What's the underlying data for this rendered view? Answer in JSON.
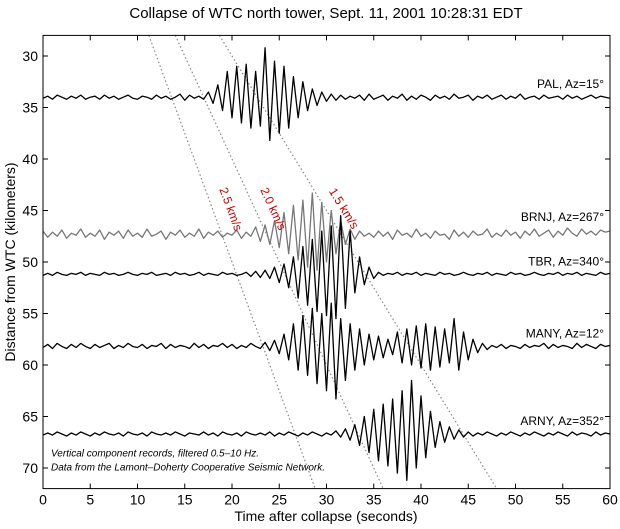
{
  "chart_data": {
    "type": "seismogram",
    "title": "Collapse of WTC north tower, Sept. 11, 2001 10:28:31 EDT",
    "x_label": "Time after collapse (seconds)",
    "y_label": "Distance from WTC (kilometers)",
    "xlim": [
      0,
      60
    ],
    "ylim": [
      28,
      72
    ],
    "y_reversed": true,
    "grid": false,
    "xticks": [
      0,
      5,
      10,
      15,
      20,
      25,
      30,
      35,
      40,
      45,
      50,
      55,
      60
    ],
    "yticks": [
      30,
      35,
      40,
      45,
      50,
      55,
      60,
      65,
      70
    ],
    "x": [
      0,
      0.5,
      1,
      1.5,
      2,
      2.5,
      3,
      3.5,
      4,
      4.5,
      5,
      5.5,
      6,
      6.5,
      7,
      7.5,
      8,
      8.5,
      9,
      9.5,
      10,
      10.5,
      11,
      11.5,
      12,
      12.5,
      13,
      13.5,
      14,
      14.5,
      15,
      15.5,
      16,
      16.5,
      17,
      17.5,
      18,
      18.5,
      19,
      19.5,
      20,
      20.5,
      21,
      21.5,
      22,
      22.5,
      23,
      23.5,
      24,
      24.5,
      25,
      25.5,
      26,
      26.5,
      27,
      27.5,
      28,
      28.5,
      29,
      29.5,
      30,
      30.5,
      31,
      31.5,
      32,
      32.5,
      33,
      33.5,
      34,
      34.5,
      35,
      35.5,
      36,
      36.5,
      37,
      37.5,
      38,
      38.5,
      39,
      39.5,
      40,
      40.5,
      41,
      41.5,
      42,
      42.5,
      43,
      43.5,
      44,
      44.5,
      45,
      45.5,
      46,
      46.5,
      47,
      47.5,
      48,
      48.5,
      49,
      49.5,
      50,
      50.5,
      51,
      51.5,
      52,
      52.5,
      53,
      53.5,
      54,
      54.5,
      55,
      55.5,
      56,
      56.5,
      57,
      57.5,
      58,
      58.5,
      59,
      59.5,
      60
    ],
    "series": [
      {
        "name": "PAL, Az=15°",
        "color": "#000000",
        "values": [
          34.1,
          33.9,
          34.2,
          33.8,
          34.0,
          34.2,
          33.9,
          34.1,
          33.8,
          34.2,
          34.0,
          33.9,
          34.2,
          33.8,
          34.1,
          33.9,
          34.2,
          34.0,
          33.8,
          34.1,
          34.2,
          33.9,
          34.0,
          34.2,
          33.8,
          34.1,
          33.9,
          34.2,
          34.0,
          33.7,
          34.3,
          33.8,
          34.1,
          33.9,
          34.2,
          33.5,
          34.6,
          32.8,
          35.3,
          31.5,
          36.0,
          31.0,
          36.5,
          30.8,
          37.0,
          31.5,
          36.8,
          29.2,
          38.2,
          30.5,
          37.5,
          31.0,
          37.0,
          32.0,
          36.0,
          32.5,
          35.3,
          33.2,
          34.8,
          33.5,
          34.4,
          33.7,
          34.3,
          33.8,
          34.2,
          33.9,
          34.1,
          33.8,
          34.3,
          33.7,
          34.2,
          34.0,
          33.8,
          34.3,
          33.9,
          34.1,
          33.7,
          34.3,
          33.9,
          34.2,
          33.8,
          34.0,
          34.3,
          33.8,
          34.1,
          33.9,
          34.2,
          33.7,
          34.1,
          34.0,
          33.8,
          34.3,
          33.9,
          34.1,
          33.8,
          34.2,
          34.0,
          33.8,
          34.2,
          33.9,
          34.1,
          33.7,
          34.2,
          34.0,
          33.9,
          34.2,
          33.8,
          34.1,
          34.0,
          33.9,
          34.2,
          33.8,
          34.1,
          33.9,
          34.2,
          34.0,
          33.8,
          34.1,
          33.9,
          34.0,
          34.1
        ]
      },
      {
        "name": "BRNJ, Az=267°",
        "color": "#777777",
        "values": [
          47.0,
          47.6,
          47.1,
          47.5,
          46.9,
          47.7,
          47.2,
          47.4,
          46.8,
          47.6,
          47.2,
          47.5,
          46.9,
          47.8,
          47.1,
          47.4,
          47.0,
          47.7,
          46.9,
          47.5,
          47.2,
          47.6,
          46.8,
          47.5,
          47.3,
          47.0,
          47.8,
          47.1,
          47.4,
          46.9,
          47.6,
          47.2,
          47.5,
          46.8,
          47.7,
          47.1,
          47.4,
          47.0,
          47.6,
          47.2,
          47.4,
          46.9,
          47.7,
          47.1,
          47.5,
          46.6,
          48.0,
          46.4,
          48.3,
          46.0,
          48.6,
          45.2,
          49.2,
          44.5,
          49.8,
          44.0,
          50.5,
          43.3,
          50.8,
          44.2,
          50.0,
          45.0,
          49.2,
          46.0,
          48.3,
          46.8,
          47.8,
          47.0,
          47.5,
          47.2,
          47.6,
          47.0,
          47.5,
          47.1,
          47.8,
          46.9,
          47.4,
          47.2,
          47.6,
          46.8,
          47.5,
          47.2,
          47.7,
          47.0,
          47.4,
          47.3,
          47.8,
          46.9,
          47.5,
          47.1,
          47.6,
          47.0,
          47.4,
          47.3,
          46.8,
          47.6,
          47.2,
          47.5,
          46.9,
          47.4,
          47.1,
          47.7,
          47.0,
          47.4,
          46.8,
          47.5,
          47.2,
          46.9,
          47.6,
          47.0,
          47.4,
          46.7,
          47.2,
          47.5,
          46.8,
          47.3,
          47.0,
          47.4,
          46.9,
          47.1,
          47.0
        ]
      },
      {
        "name": "TBR, Az=340°",
        "color": "#000000",
        "values": [
          51.3,
          51.1,
          51.3,
          51.0,
          51.2,
          51.3,
          51.1,
          51.2,
          51.0,
          51.3,
          51.1,
          51.2,
          51.3,
          51.0,
          51.2,
          51.1,
          51.3,
          51.2,
          51.0,
          51.2,
          51.3,
          51.1,
          51.2,
          51.0,
          51.3,
          51.2,
          51.1,
          51.3,
          51.0,
          51.2,
          51.1,
          51.3,
          51.2,
          51.0,
          51.3,
          51.1,
          51.2,
          51.3,
          51.0,
          51.2,
          51.1,
          51.3,
          51.2,
          51.0,
          51.4,
          50.9,
          51.5,
          50.8,
          51.6,
          50.5,
          52.0,
          50.2,
          52.5,
          49.5,
          53.5,
          48.5,
          54.2,
          47.8,
          54.8,
          47.0,
          55.2,
          46.5,
          55.5,
          45.5,
          54.5,
          47.0,
          53.0,
          49.5,
          52.2,
          50.5,
          51.6,
          51.0,
          51.3,
          51.1,
          51.2,
          51.0,
          51.3,
          51.1,
          51.2,
          51.0,
          51.3,
          51.1,
          51.2,
          51.3,
          51.0,
          51.2,
          51.1,
          51.3,
          51.2,
          51.0,
          51.2,
          51.3,
          51.1,
          51.2,
          51.0,
          51.3,
          51.1,
          51.2,
          51.3,
          51.0,
          51.2,
          51.1,
          51.3,
          51.2,
          51.0,
          51.2,
          51.3,
          51.1,
          51.2,
          51.0,
          51.3,
          51.1,
          51.2,
          51.0,
          51.3,
          51.1,
          51.2,
          51.3,
          51.0,
          51.2,
          51.1
        ]
      },
      {
        "name": "MANY, Az=12°",
        "color": "#000000",
        "values": [
          58.3,
          58.0,
          58.4,
          57.9,
          58.2,
          58.4,
          58.0,
          58.3,
          57.9,
          58.2,
          58.4,
          58.0,
          58.3,
          58.1,
          57.9,
          58.4,
          58.1,
          58.3,
          57.9,
          58.2,
          58.3,
          58.0,
          58.4,
          58.1,
          58.2,
          57.9,
          58.4,
          58.0,
          58.3,
          58.1,
          58.2,
          58.4,
          57.9,
          58.3,
          58.0,
          58.4,
          58.1,
          58.2,
          57.9,
          58.3,
          58.0,
          58.4,
          58.1,
          58.3,
          57.9,
          58.2,
          58.4,
          57.8,
          58.6,
          57.6,
          58.9,
          57.0,
          59.5,
          56.0,
          60.5,
          55.2,
          61.0,
          54.5,
          61.8,
          55.0,
          62.5,
          54.0,
          63.3,
          55.5,
          61.5,
          56.0,
          60.5,
          56.5,
          60.0,
          57.0,
          59.5,
          57.2,
          59.3,
          57.5,
          59.0,
          56.8,
          59.8,
          56.5,
          60.0,
          56.2,
          60.3,
          56.0,
          60.5,
          56.3,
          60.2,
          56.5,
          59.8,
          55.5,
          60.5,
          56.8,
          59.5,
          57.5,
          58.8,
          57.9,
          58.5,
          58.1,
          58.3,
          58.0,
          58.4,
          58.1,
          58.2,
          58.4,
          58.0,
          58.3,
          58.1,
          58.2,
          57.9,
          58.4,
          58.0,
          58.3,
          58.1,
          58.2,
          58.4,
          57.9,
          58.3,
          58.0,
          58.2,
          58.4,
          58.0,
          58.2,
          58.1
        ]
      },
      {
        "name": "ARNY, Az=352°",
        "color": "#000000",
        "values": [
          66.8,
          66.6,
          66.8,
          66.5,
          66.7,
          66.9,
          66.6,
          66.8,
          66.5,
          66.7,
          66.9,
          66.6,
          66.8,
          66.5,
          66.7,
          66.8,
          66.6,
          66.9,
          66.5,
          66.7,
          66.8,
          66.6,
          66.9,
          66.5,
          66.7,
          66.8,
          66.6,
          66.8,
          66.5,
          66.7,
          66.9,
          66.6,
          66.7,
          66.8,
          66.5,
          66.8,
          66.6,
          66.9,
          66.5,
          66.7,
          66.8,
          66.6,
          66.9,
          66.5,
          66.7,
          66.8,
          66.6,
          66.8,
          66.5,
          66.9,
          66.6,
          66.8,
          66.5,
          66.7,
          66.9,
          66.6,
          66.8,
          66.5,
          66.7,
          66.9,
          66.6,
          66.8,
          66.4,
          67.0,
          66.2,
          67.3,
          65.8,
          67.8,
          65.0,
          68.5,
          64.3,
          69.3,
          63.8,
          69.8,
          63.3,
          70.5,
          62.5,
          71.2,
          61.5,
          70.0,
          63.0,
          69.0,
          64.5,
          68.0,
          65.5,
          67.5,
          66.0,
          67.2,
          66.3,
          67.0,
          66.5,
          66.9,
          66.6,
          66.8,
          66.5,
          66.7,
          66.9,
          66.6,
          66.8,
          66.5,
          66.7,
          66.9,
          66.6,
          66.8,
          66.5,
          66.7,
          66.9,
          66.6,
          66.8,
          66.5,
          66.7,
          66.9,
          66.5,
          66.8,
          66.6,
          66.7,
          66.9,
          66.5,
          66.8,
          66.6,
          66.7
        ]
      }
    ],
    "velocity_lines": [
      {
        "value": 2.5,
        "label": "2.5 km/s"
      },
      {
        "value": 2,
        "label": "2.0 km/s"
      },
      {
        "value": 1.5,
        "label": "1.5 km/s"
      }
    ],
    "velocity_line_color": "#888888",
    "velocity_label_color": "#cc0000",
    "notes": [
      "Vertical component records, filtered 0.5–10 Hz.",
      "Data from the Lamont–Doherty Cooperative Seismic Network."
    ]
  }
}
